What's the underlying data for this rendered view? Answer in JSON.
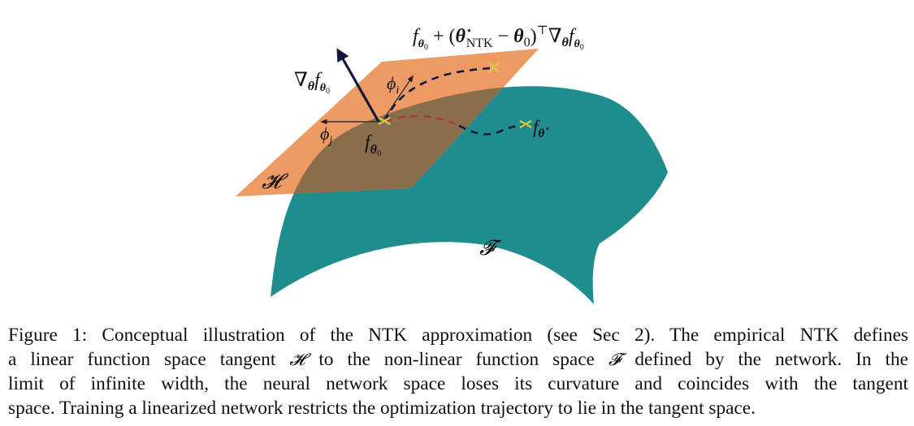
{
  "figure": {
    "surface_color": "#1f8c8d",
    "plane_color": "#ee9a64",
    "overlap_color": "#8a6e4c",
    "arrow_color": "#13163f",
    "marker_color": "#d6c64a",
    "trajectory_dark_color": "#13163f",
    "trajectory_red_color": "#b0392a",
    "labels": {
      "top_formula": {
        "f": "f",
        "theta0_sub": "θ",
        "zero": "0",
        "plus": " + (",
        "theta_star": "θ",
        "star": "⋆",
        "ntk": "NTK",
        "minus": " − ",
        "theta0": "θ",
        "zero2": "0",
        "close": ")",
        "transpose": "⊤",
        "nabla": "∇",
        "theta_grad": "θ",
        "f2": "f",
        "theta0_sub2": "θ",
        "zero3": "0"
      },
      "gradient": {
        "nabla": "∇",
        "theta": "θ",
        "f": "f",
        "theta_sub": "θ",
        "zero": "0"
      },
      "phi_i": {
        "phi": "ϕ",
        "sub": "i"
      },
      "phi_j": {
        "phi": "ϕ",
        "sub": "j"
      },
      "f_theta0": {
        "f": "f",
        "theta": "θ",
        "zero": "0"
      },
      "f_theta_star": {
        "f": "f",
        "theta": "θ",
        "star": "⋆"
      },
      "tangent_space": "𝓗",
      "function_space": "𝓕"
    }
  },
  "caption": {
    "line1_pre": "Figure 1: Conceptual illustration of the NTK approximation (see Sec 2). The empirical NTK defines",
    "line2_a": "a linear function space tangent ",
    "line2_H": "𝓗",
    "line2_b": " to the non-linear function space ",
    "line2_F": "𝓕",
    "line2_c": " defined by the network. In the",
    "line3": "limit of infinite width, the neural network space loses its curvature and coincides with the tangent",
    "line4": "space. Training a linearized network restricts the optimization trajectory to lie in the tangent space."
  }
}
